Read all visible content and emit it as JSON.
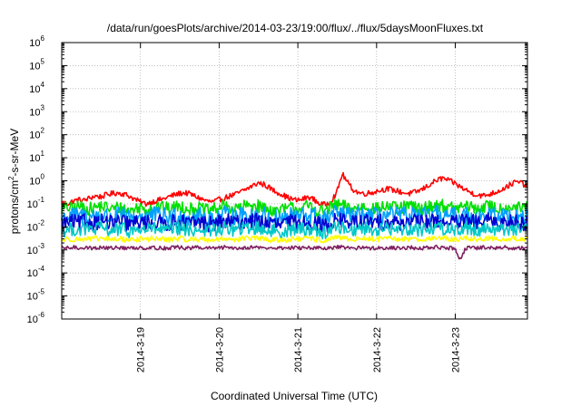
{
  "chart_data": {
    "type": "line",
    "title": "/data/run/goesPlots/archive/2014-03-23/19:00/flux/../flux/5daysMoonFluxes.txt",
    "xlabel": "Coordinated Universal Time (UTC)",
    "ylabel_parts": [
      "protons/cm",
      "2",
      "-s-sr-MeV"
    ],
    "y_scale": "log",
    "ylim_exp": [
      -6,
      6
    ],
    "y_tick_labels": [
      {
        "base": "10",
        "exp": "-6"
      },
      {
        "base": "10",
        "exp": "-5"
      },
      {
        "base": "10",
        "exp": "-4"
      },
      {
        "base": "10",
        "exp": "-3"
      },
      {
        "base": "10",
        "exp": "-2"
      },
      {
        "base": "10",
        "exp": "-1"
      },
      {
        "base": "10",
        "exp": "0"
      },
      {
        "base": "10",
        "exp": "1"
      },
      {
        "base": "10",
        "exp": "2"
      },
      {
        "base": "10",
        "exp": "3"
      },
      {
        "base": "10",
        "exp": "4"
      },
      {
        "base": "10",
        "exp": "5"
      },
      {
        "base": "10",
        "exp": "6"
      }
    ],
    "x_range_days": [
      "2014-03-18T00:00",
      "2014-03-23T22:00"
    ],
    "x_tick_labels": [
      "2014-3-19",
      "2014-3-20",
      "2014-3-21",
      "2014-3-22",
      "2014-3-23"
    ],
    "x_tick_dates": [
      "2014-03-19",
      "2014-03-20",
      "2014-03-21",
      "2014-03-22",
      "2014-03-23"
    ],
    "grid": true,
    "series": [
      {
        "color": "#ff0000",
        "noise": 0.12,
        "values": [
          0.12,
          0.1,
          0.13,
          0.15,
          0.14,
          0.18,
          0.22,
          0.2,
          0.25,
          0.28,
          0.3,
          0.27,
          0.22,
          0.16,
          0.12,
          0.1,
          0.12,
          0.14,
          0.16,
          0.2,
          0.24,
          0.28,
          0.3,
          0.26,
          0.2,
          0.16,
          0.13,
          0.12,
          0.15,
          0.18,
          0.22,
          0.26,
          0.34,
          0.45,
          0.6,
          0.8,
          0.7,
          0.5,
          0.35,
          0.28,
          0.2,
          0.16,
          0.14,
          0.16,
          0.2,
          0.15,
          0.1,
          0.09,
          0.14,
          0.3,
          2.0,
          0.8,
          0.4,
          0.3,
          0.28,
          0.3,
          0.35,
          0.4,
          0.45,
          0.4,
          0.35,
          0.3,
          0.28,
          0.32,
          0.4,
          0.55,
          0.8,
          1.1,
          1.3,
          1.0,
          0.8,
          0.55,
          0.4,
          0.3,
          0.25,
          0.22,
          0.25,
          0.3,
          0.38,
          0.5,
          0.7,
          0.9,
          0.8,
          0.55
        ]
      },
      {
        "color": "#00e000",
        "noise": 0.28,
        "values": [
          0.06,
          0.07,
          0.06,
          0.08,
          0.07,
          0.06,
          0.07,
          0.08,
          0.07,
          0.06,
          0.07,
          0.06,
          0.05,
          0.06,
          0.07,
          0.06,
          0.07,
          0.08,
          0.07,
          0.06,
          0.07,
          0.08,
          0.07,
          0.06,
          0.07,
          0.06,
          0.05,
          0.06,
          0.07,
          0.08,
          0.07,
          0.06,
          0.07,
          0.08,
          0.09,
          0.08,
          0.07,
          0.06,
          0.05,
          0.05,
          0.06,
          0.07,
          0.06,
          0.07,
          0.08,
          0.06,
          0.05,
          0.05,
          0.07,
          0.09,
          0.08,
          0.07,
          0.06,
          0.07,
          0.08,
          0.07,
          0.06,
          0.07,
          0.08,
          0.07,
          0.06,
          0.07,
          0.08,
          0.07,
          0.06,
          0.07,
          0.08,
          0.09,
          0.08,
          0.07,
          0.06,
          0.07,
          0.08,
          0.07,
          0.06,
          0.07,
          0.08,
          0.07,
          0.06,
          0.07,
          0.08,
          0.07,
          0.06,
          0.07
        ]
      },
      {
        "color": "#00a0ff",
        "noise": 0.4,
        "values": [
          0.025,
          0.028,
          0.03,
          0.026,
          0.032,
          0.028,
          0.03,
          0.034,
          0.028,
          0.026,
          0.03,
          0.028,
          0.024,
          0.026,
          0.03,
          0.028,
          0.032,
          0.03,
          0.028,
          0.026,
          0.03,
          0.032,
          0.028,
          0.026,
          0.03,
          0.028,
          0.024,
          0.026,
          0.028,
          0.032,
          0.03,
          0.028,
          0.03,
          0.034,
          0.036,
          0.032,
          0.03,
          0.026,
          0.024,
          0.022,
          0.026,
          0.03,
          0.028,
          0.03,
          0.032,
          0.028,
          0.022,
          0.02,
          0.03,
          0.04,
          0.036,
          0.03,
          0.028,
          0.03,
          0.034,
          0.03,
          0.028,
          0.03,
          0.032,
          0.03,
          0.028,
          0.03,
          0.032,
          0.03,
          0.028,
          0.03,
          0.034,
          0.036,
          0.032,
          0.03,
          0.028,
          0.03,
          0.032,
          0.03,
          0.028,
          0.03,
          0.034,
          0.03,
          0.028,
          0.03,
          0.032,
          0.03,
          0.028,
          0.03
        ]
      },
      {
        "color": "#0000d0",
        "noise": 0.35,
        "values": [
          0.014,
          0.015,
          0.016,
          0.014,
          0.017,
          0.015,
          0.016,
          0.018,
          0.015,
          0.014,
          0.016,
          0.015,
          0.013,
          0.014,
          0.016,
          0.015,
          0.017,
          0.016,
          0.015,
          0.014,
          0.016,
          0.017,
          0.015,
          0.014,
          0.016,
          0.015,
          0.013,
          0.014,
          0.015,
          0.017,
          0.016,
          0.015,
          0.016,
          0.018,
          0.019,
          0.017,
          0.016,
          0.014,
          0.013,
          0.012,
          0.014,
          0.016,
          0.015,
          0.016,
          0.017,
          0.015,
          0.012,
          0.011,
          0.016,
          0.021,
          0.019,
          0.016,
          0.015,
          0.016,
          0.018,
          0.016,
          0.015,
          0.016,
          0.017,
          0.016,
          0.015,
          0.016,
          0.017,
          0.016,
          0.015,
          0.016,
          0.018,
          0.019,
          0.017,
          0.016,
          0.015,
          0.016,
          0.017,
          0.016,
          0.015,
          0.016,
          0.018,
          0.016,
          0.015,
          0.016,
          0.017,
          0.016,
          0.015,
          0.016
        ]
      },
      {
        "color": "#00c8c8",
        "noise": 0.3,
        "values": [
          0.007,
          0.0075,
          0.008,
          0.007,
          0.0085,
          0.0075,
          0.008,
          0.009,
          0.0075,
          0.007,
          0.008,
          0.0075,
          0.0065,
          0.007,
          0.008,
          0.0075,
          0.0085,
          0.008,
          0.0075,
          0.007,
          0.008,
          0.0085,
          0.0075,
          0.007,
          0.008,
          0.0075,
          0.0065,
          0.007,
          0.0075,
          0.0085,
          0.008,
          0.0075,
          0.008,
          0.009,
          0.0095,
          0.0085,
          0.008,
          0.007,
          0.0065,
          0.006,
          0.007,
          0.008,
          0.0075,
          0.008,
          0.0085,
          0.0075,
          0.006,
          0.0055,
          0.008,
          0.01,
          0.0095,
          0.008,
          0.0075,
          0.008,
          0.009,
          0.008,
          0.0075,
          0.008,
          0.0085,
          0.008,
          0.0075,
          0.008,
          0.0085,
          0.008,
          0.0075,
          0.008,
          0.009,
          0.0095,
          0.0085,
          0.008,
          0.0075,
          0.008,
          0.0085,
          0.008,
          0.0075,
          0.008,
          0.009,
          0.008,
          0.0075,
          0.008,
          0.0085,
          0.008,
          0.0075,
          0.008
        ]
      },
      {
        "color": "#ffff00",
        "noise": 0.12,
        "values": [
          0.0028,
          0.0029,
          0.003,
          0.0028,
          0.0031,
          0.0029,
          0.003,
          0.0032,
          0.0029,
          0.0028,
          0.003,
          0.0029,
          0.0027,
          0.0028,
          0.003,
          0.0029,
          0.0031,
          0.003,
          0.0029,
          0.0028,
          0.003,
          0.0031,
          0.0029,
          0.0028,
          0.003,
          0.0029,
          0.0027,
          0.0028,
          0.0029,
          0.0031,
          0.003,
          0.0029,
          0.003,
          0.0032,
          0.0033,
          0.0031,
          0.003,
          0.0028,
          0.0027,
          0.0026,
          0.0028,
          0.003,
          0.0029,
          0.003,
          0.0031,
          0.0029,
          0.0026,
          0.0025,
          0.003,
          0.0034,
          0.0033,
          0.003,
          0.0029,
          0.003,
          0.0032,
          0.003,
          0.0029,
          0.003,
          0.0031,
          0.003,
          0.0029,
          0.003,
          0.0031,
          0.003,
          0.0029,
          0.003,
          0.0032,
          0.0033,
          0.0031,
          0.003,
          0.0029,
          0.003,
          0.0031,
          0.003,
          0.0029,
          0.003,
          0.0032,
          0.003,
          0.0029,
          0.003,
          0.0031,
          0.003,
          0.0029,
          0.003
        ]
      },
      {
        "color": "#802060",
        "noise": 0.08,
        "values": [
          0.0012,
          0.0012,
          0.0013,
          0.0012,
          0.0013,
          0.0012,
          0.0012,
          0.0013,
          0.0012,
          0.0012,
          0.0013,
          0.0012,
          0.0012,
          0.0012,
          0.0013,
          0.0012,
          0.0013,
          0.0012,
          0.0012,
          0.0012,
          0.0013,
          0.0013,
          0.0012,
          0.0012,
          0.0013,
          0.0012,
          0.0012,
          0.0012,
          0.0012,
          0.0013,
          0.0013,
          0.0012,
          0.0012,
          0.0013,
          0.0013,
          0.0013,
          0.0012,
          0.0012,
          0.0012,
          0.0012,
          0.0012,
          0.0013,
          0.0012,
          0.0012,
          0.0013,
          0.0012,
          0.0012,
          0.0011,
          0.0012,
          0.0013,
          0.0013,
          0.0012,
          0.0012,
          0.0012,
          0.0013,
          0.0012,
          0.0012,
          0.0012,
          0.0013,
          0.0012,
          0.0012,
          0.0012,
          0.0013,
          0.0012,
          0.0012,
          0.0012,
          0.0013,
          0.0013,
          0.0012,
          0.0012,
          0.0012,
          0.0004,
          0.0012,
          0.0012,
          0.0012,
          0.0013,
          0.0012,
          0.0012,
          0.0012,
          0.0013,
          0.0012,
          0.0012,
          0.0012,
          0.0012
        ]
      }
    ]
  }
}
